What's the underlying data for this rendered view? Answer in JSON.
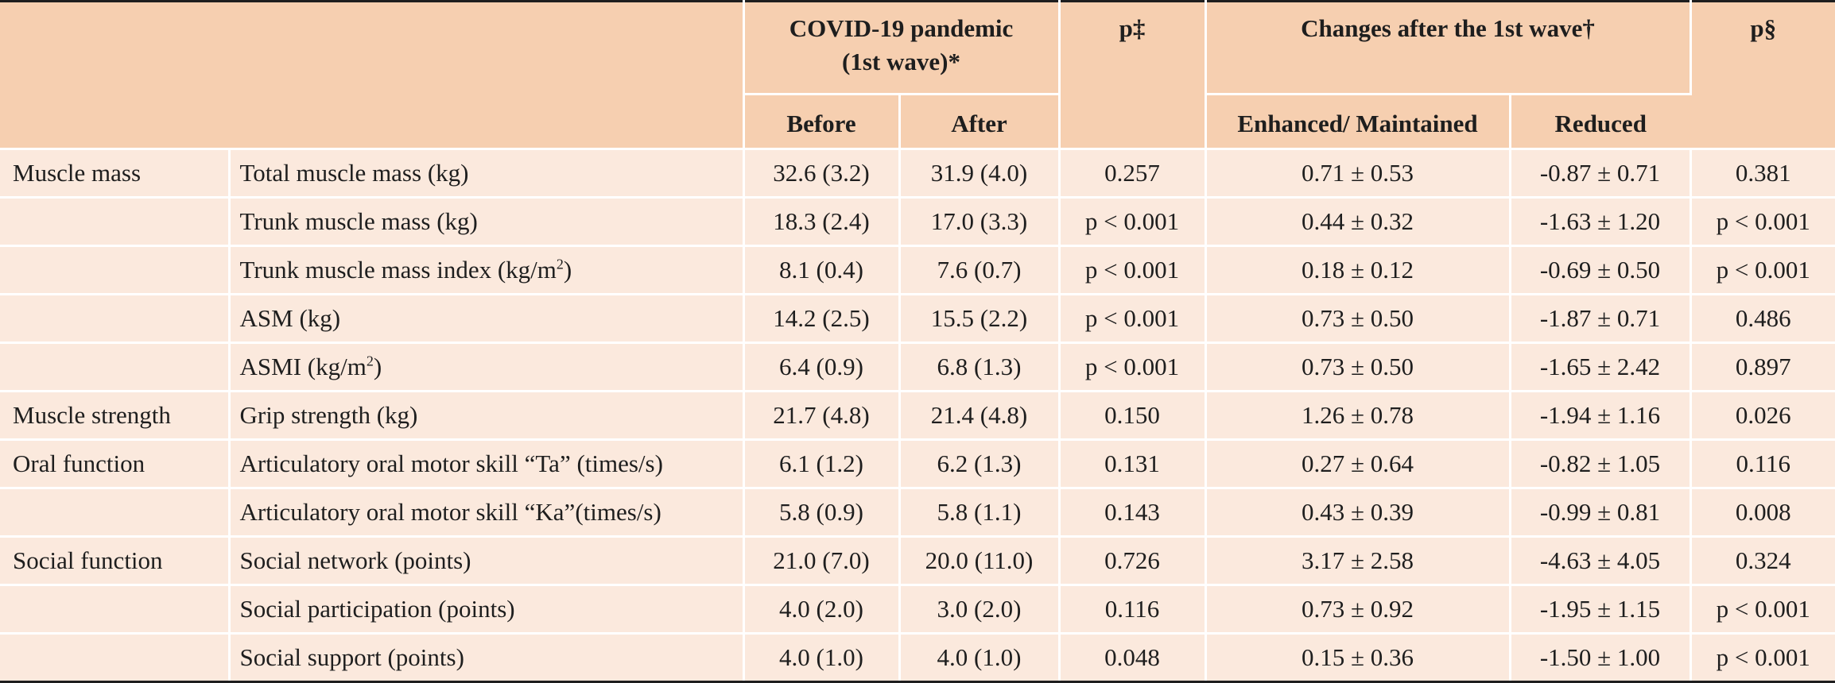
{
  "header": {
    "pandemic_group": "COVID-19 pandemic (1st wave)*",
    "pandemic_line1": "COVID-19 pandemic",
    "pandemic_line2": "(1st wave)*",
    "before": "Before",
    "after": "After",
    "p_double_dagger": "p‡",
    "changes_group": "Changes after the 1st wave†",
    "enhanced": "Enhanced/ Maintained",
    "reduced": "Reduced",
    "p_section": "p§"
  },
  "rows": [
    {
      "category": "Muscle mass",
      "measure": "Total muscle mass (kg)",
      "before": "32.6 (3.2)",
      "after": "31.9 (4.0)",
      "p1": "0.257",
      "enhanced": "0.71 ± 0.53",
      "reduced": "-0.87 ± 0.71",
      "p2": "0.381"
    },
    {
      "category": "",
      "measure": "Trunk muscle mass (kg)",
      "before": "18.3 (2.4)",
      "after": "17.0 (3.3)",
      "p1": "p < 0.001",
      "enhanced": "0.44 ± 0.32",
      "reduced": "-1.63 ± 1.20",
      "p2": "p < 0.001"
    },
    {
      "category": "",
      "measure": "Trunk muscle mass index (kg/m²)",
      "measure_base": "Trunk muscle mass index (kg/m",
      "measure_sup": "2",
      "measure_tail": ")",
      "before": "8.1 (0.4)",
      "after": "7.6 (0.7)",
      "p1": "p < 0.001",
      "enhanced": "0.18 ± 0.12",
      "reduced": "-0.69 ± 0.50",
      "p2": "p < 0.001"
    },
    {
      "category": "",
      "measure": "ASM (kg)",
      "before": "14.2 (2.5)",
      "after": "15.5 (2.2)",
      "p1": "p < 0.001",
      "enhanced": "0.73 ± 0.50",
      "reduced": "-1.87 ± 0.71",
      "p2": "0.486"
    },
    {
      "category": "",
      "measure": "ASMI (kg/m²)",
      "measure_base": "ASMI (kg/m",
      "measure_sup": "2",
      "measure_tail": ")",
      "before": "6.4 (0.9)",
      "after": "6.8 (1.3)",
      "p1": "p < 0.001",
      "enhanced": "0.73 ± 0.50",
      "reduced": "-1.65 ± 2.42",
      "p2": "0.897"
    },
    {
      "category": "Muscle strength",
      "measure": "Grip strength (kg)",
      "before": "21.7 (4.8)",
      "after": "21.4 (4.8)",
      "p1": "0.150",
      "enhanced": "1.26 ± 0.78",
      "reduced": "-1.94 ± 1.16",
      "p2": "0.026"
    },
    {
      "category": "Oral function",
      "measure": "Articulatory oral motor skill “Ta” (times/s)",
      "before": "6.1 (1.2)",
      "after": "6.2 (1.3)",
      "p1": "0.131",
      "enhanced": "0.27 ± 0.64",
      "reduced": "-0.82 ± 1.05",
      "p2": "0.116"
    },
    {
      "category": "",
      "measure": "Articulatory oral motor skill “Ka”(times/s)",
      "before": "5.8 (0.9)",
      "after": "5.8 (1.1)",
      "p1": "0.143",
      "enhanced": "0.43 ± 0.39",
      "reduced": "-0.99 ± 0.81",
      "p2": "0.008"
    },
    {
      "category": "Social function",
      "measure": "Social network (points)",
      "before": "21.0 (7.0)",
      "after": "20.0 (11.0)",
      "p1": "0.726",
      "enhanced": "3.17 ± 2.58",
      "reduced": "-4.63 ± 4.05",
      "p2": "0.324"
    },
    {
      "category": "",
      "measure": "Social participation (points)",
      "before": "4.0 (2.0)",
      "after": "3.0 (2.0)",
      "p1": "0.116",
      "enhanced": "0.73 ± 0.92",
      "reduced": "-1.95 ± 1.15",
      "p2": "p < 0.001"
    },
    {
      "category": "",
      "measure": "Social support (points)",
      "before": "4.0 (1.0)",
      "after": "4.0 (1.0)",
      "p1": "0.048",
      "enhanced": "0.15 ± 0.36",
      "reduced": "-1.50 ± 1.00",
      "p2": "p < 0.001"
    }
  ]
}
